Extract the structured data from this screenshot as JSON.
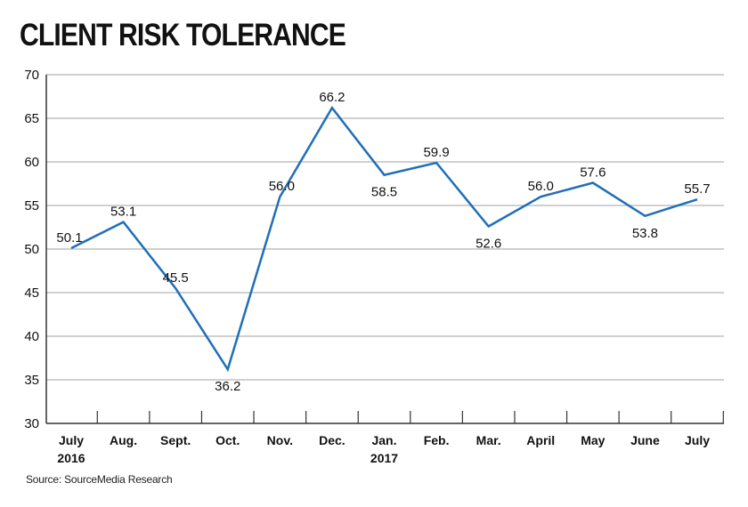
{
  "chart_data": {
    "type": "line",
    "title": "CLIENT RISK TOLERANCE",
    "categories": [
      [
        "July",
        "2016"
      ],
      [
        "Aug."
      ],
      [
        "Sept."
      ],
      [
        "Oct."
      ],
      [
        "Nov."
      ],
      [
        "Dec."
      ],
      [
        "Jan.",
        "2017"
      ],
      [
        "Feb."
      ],
      [
        "Mar."
      ],
      [
        "April"
      ],
      [
        "May"
      ],
      [
        "June"
      ],
      [
        "July"
      ]
    ],
    "series": [
      {
        "values": [
          50.1,
          53.1,
          45.5,
          36.2,
          56.0,
          66.2,
          58.5,
          59.9,
          52.6,
          56.0,
          57.6,
          53.8,
          55.7
        ],
        "data_labels": [
          "50.1",
          "53.1",
          "45.5",
          "36.2",
          "56.0",
          "66.2",
          "58.5",
          "59.9",
          "52.6",
          "56.0",
          "57.6",
          "53.8",
          "55.7"
        ]
      }
    ],
    "ylim": [
      30,
      70
    ],
    "yticks": [
      30,
      35,
      40,
      45,
      50,
      55,
      60,
      65,
      70
    ],
    "grid": true,
    "line_color": "#1f6fb8",
    "grid_color": "#d0d0d0",
    "source": "Source: SourceMedia Research"
  }
}
